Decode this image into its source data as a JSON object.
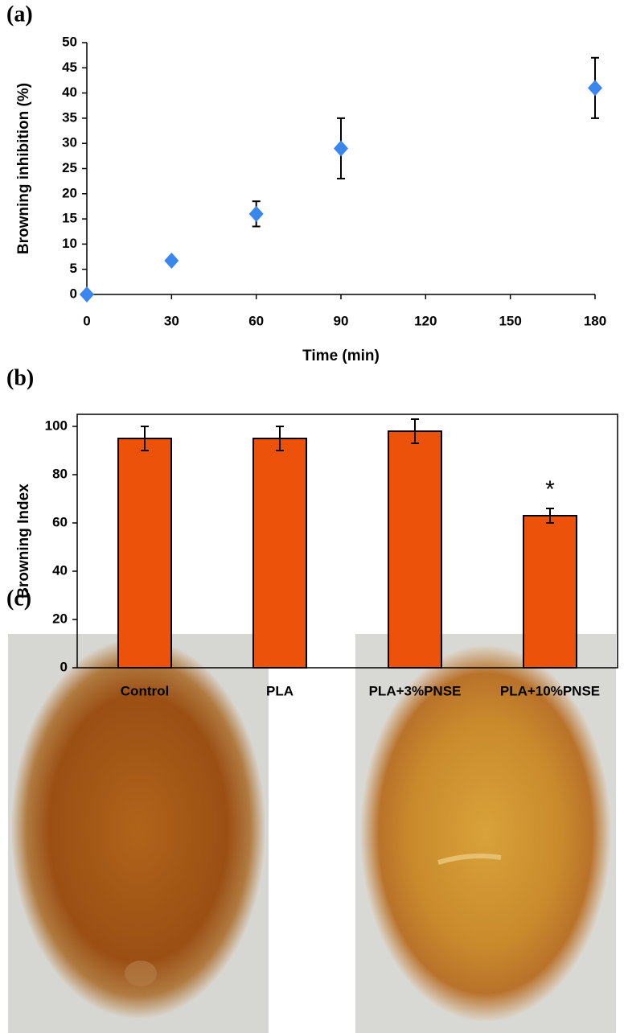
{
  "chart_data": [
    {
      "type": "scatter",
      "panel": "(a)",
      "xlabel": "Time (min)",
      "ylabel": "Browning inhibition (%)",
      "x": [
        0,
        30,
        60,
        90,
        180
      ],
      "values": [
        0,
        6.7,
        16,
        29,
        41
      ],
      "errors": [
        0,
        0,
        2.5,
        6,
        6
      ],
      "color": "#3a86ef",
      "xlim": [
        0,
        180
      ],
      "xticks": [
        0,
        30,
        60,
        90,
        120,
        150,
        180
      ],
      "ylim": [
        0,
        50
      ],
      "yticks": [
        0,
        5,
        10,
        15,
        20,
        25,
        30,
        35,
        40,
        45,
        50
      ],
      "grid": false
    },
    {
      "type": "bar",
      "panel": "(b)",
      "ylabel": "Browning Index",
      "categories": [
        "Control",
        "PLA",
        "PLA+3%PNSE",
        "PLA+10%PNSE"
      ],
      "values": [
        95,
        95,
        98,
        63
      ],
      "errors": [
        5,
        5,
        5,
        3
      ],
      "annotation": "*",
      "color": "#ec5209",
      "ylim": [
        0,
        105
      ],
      "yticks": [
        0,
        20,
        40,
        60,
        80,
        100
      ],
      "grid": false
    }
  ],
  "panel_c": {
    "label": "(c)"
  }
}
